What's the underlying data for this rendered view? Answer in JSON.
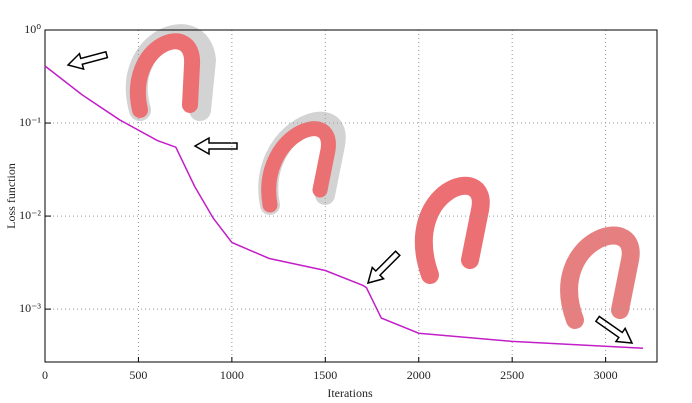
{
  "chart_data": {
    "type": "line",
    "x_label": "Iterations",
    "y_label": "Loss function",
    "log_y": true,
    "grid": true,
    "xlim": [
      0,
      3275
    ],
    "ylim": [
      0.00027,
      1
    ],
    "xticks": [
      0,
      500,
      1000,
      1500,
      2000,
      2500,
      3000
    ],
    "yticks": [
      {
        "value": 1,
        "label": "10⁰"
      },
      {
        "value": 0.1,
        "label": "10⁻¹"
      },
      {
        "value": 0.01,
        "label": "10⁻²"
      },
      {
        "value": 0.001,
        "label": "10⁻³"
      }
    ],
    "series": [
      {
        "name": "Loss",
        "color": "#c21fc8",
        "x": [
          0,
          200,
          400,
          600,
          700,
          800,
          900,
          1000,
          1200,
          1500,
          1700,
          1720,
          1800,
          2000,
          2500,
          3200
        ],
        "values": [
          0.41,
          0.2,
          0.108,
          0.065,
          0.055,
          0.021,
          0.0095,
          0.0052,
          0.0035,
          0.0026,
          0.0018,
          0.0017,
          0.0008,
          0.00055,
          0.00045,
          0.00038
        ]
      }
    ]
  }
}
